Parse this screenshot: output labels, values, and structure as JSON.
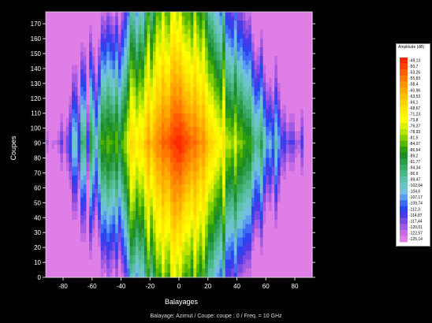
{
  "chart_data": {
    "type": "heatmap",
    "xlabel": "Balayages",
    "ylabel": "Coupes",
    "x_ticks": [
      -80,
      -60,
      -40,
      -20,
      0,
      20,
      40,
      60,
      80
    ],
    "y_ticks": [
      0,
      10,
      20,
      30,
      40,
      50,
      60,
      70,
      80,
      90,
      100,
      110,
      120,
      130,
      140,
      150,
      160,
      170
    ],
    "xlim": [
      -92,
      92
    ],
    "ylim": [
      0,
      178
    ],
    "peak": {
      "x": 0,
      "y": 90,
      "value": -49.13
    },
    "legend_title": "Amplitude (dB)",
    "legend_levels": [
      "-49,13",
      "-50,7",
      "-53,26",
      "-55,83",
      "-58,4",
      "-60,96",
      "-63,53",
      "-66,1",
      "-68,67",
      "-71,23",
      "-73,8",
      "-76,37",
      "-78,93",
      "-81,5",
      "-84,07",
      "-86,64",
      "-89,2",
      "-91,77",
      "-94,34",
      "-96,9",
      "-99,47",
      "-102,04",
      "-104,6",
      "-107,17",
      "-109,74",
      "-112,3",
      "-114,87",
      "-117,44",
      "-120,01",
      "-122,57",
      "-125,14"
    ],
    "legend_colors": [
      "#ff2a00",
      "#ff4400",
      "#ff5e00",
      "#ff7800",
      "#ff9200",
      "#ffaa00",
      "#ffbe00",
      "#ffd200",
      "#ffe400",
      "#fff200",
      "#ffff00",
      "#e0f200",
      "#b8e400",
      "#86d000",
      "#56b600",
      "#2c9c10",
      "#1e8c28",
      "#2a9c46",
      "#3aaa66",
      "#4cb888",
      "#5cc0a8",
      "#6ac6c2",
      "#72bede",
      "#5a9cf0",
      "#3c6cf4",
      "#2a44f0",
      "#4a3ae8",
      "#7a4ae4",
      "#a05ae4",
      "#c46ae4",
      "#e07ee8"
    ]
  },
  "caption": "Balayage:  Azimut / Coupe:  coupe : 0 / Freq. = 10 GHz"
}
